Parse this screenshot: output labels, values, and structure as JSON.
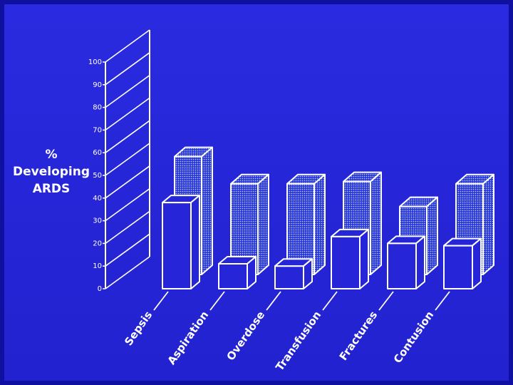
{
  "chart_data": {
    "type": "bar3d",
    "ylabel": [
      "%",
      "Developing",
      "ARDS"
    ],
    "categories": [
      "Sepsis",
      "Aspiration",
      "Overdose",
      "Transfusion",
      "Fractures",
      "Contusion"
    ],
    "series": [
      {
        "color": "#ffffff",
        "values": [
          38,
          11,
          10,
          23,
          20,
          19
        ]
      },
      {
        "color": "#ffffff",
        "values": [
          52,
          40,
          40,
          41,
          30,
          40
        ]
      }
    ],
    "ylim": [
      0,
      100
    ],
    "yticks": [
      0,
      10,
      20,
      30,
      40,
      50,
      60,
      70,
      80,
      90,
      100
    ]
  }
}
